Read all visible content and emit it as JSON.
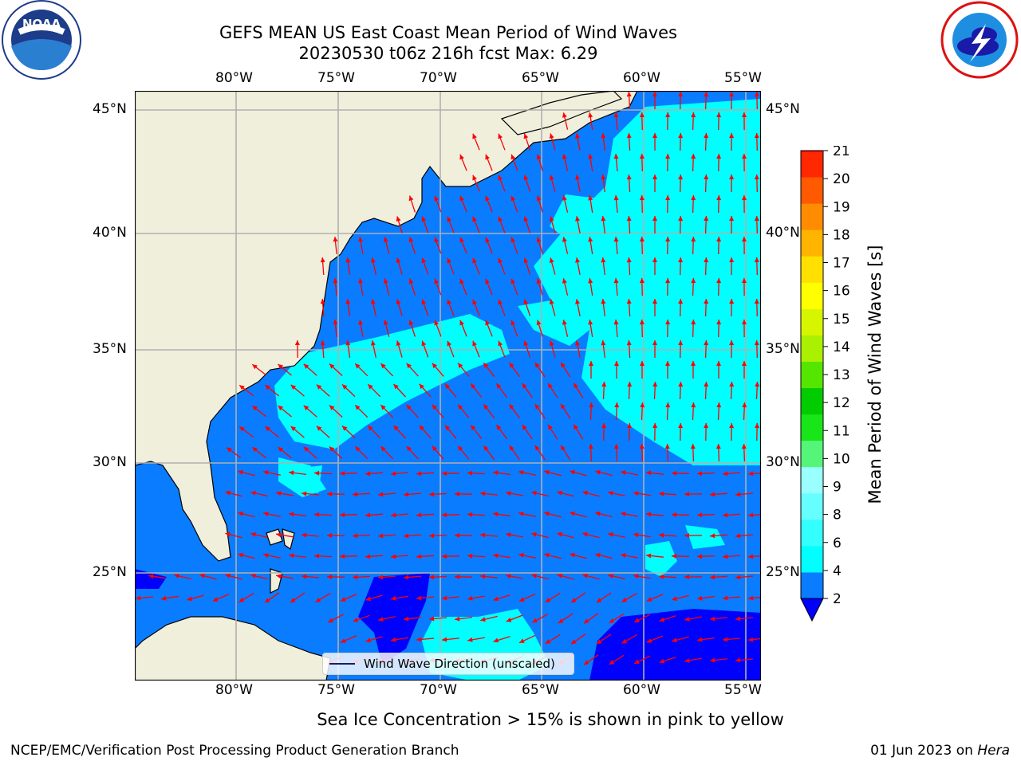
{
  "title_line1": "GEFS MEAN US East Coast Mean Period of Wind Waves",
  "title_line2": "20230530 t06z 216h fcst   Max: 6.29",
  "lon_labels": [
    "80°W",
    "75°W",
    "70°W",
    "65°W",
    "60°W",
    "55°W"
  ],
  "lat_labels": [
    "45°N",
    "40°N",
    "35°N",
    "30°N",
    "25°N"
  ],
  "colorbar": {
    "label": "Mean Period of Wind Waves [s]",
    "ticks": [
      "2",
      "4",
      "6",
      "8",
      "9",
      "10",
      "11",
      "12",
      "13",
      "14",
      "15",
      "16",
      "17",
      "18",
      "19",
      "20",
      "21"
    ],
    "colors": [
      "#0a7cff",
      "#00ffff",
      "#33ffff",
      "#66ffff",
      "#99ffff",
      "#55f57a",
      "#19e619",
      "#00cc00",
      "#55e600",
      "#aaf000",
      "#d8f500",
      "#ffff00",
      "#ffe000",
      "#ffb400",
      "#ff8c00",
      "#ff5a00",
      "#ff2800",
      "#ff0000"
    ],
    "under_color": "#0000ff"
  },
  "legend_label": "Wind Wave Direction (unscaled)",
  "note": "Sea Ice Concentration > 15% is shown in pink to yellow",
  "footer_left": "NCEP/EMC/Verification Post Processing Product Generation Branch",
  "footer_right_date": "01 Jun 2023 on ",
  "footer_right_machine": "Hera",
  "colors": {
    "land": "#efefdc",
    "ocean_base": "#0a7cff",
    "ocean_light": "#00ffff",
    "ocean_deep": "#0000ff",
    "arrow": "#ff0000",
    "grid": "#b0b0b0"
  },
  "logos": {
    "left": "noaa-logo",
    "right": "national-weather-service-logo"
  }
}
